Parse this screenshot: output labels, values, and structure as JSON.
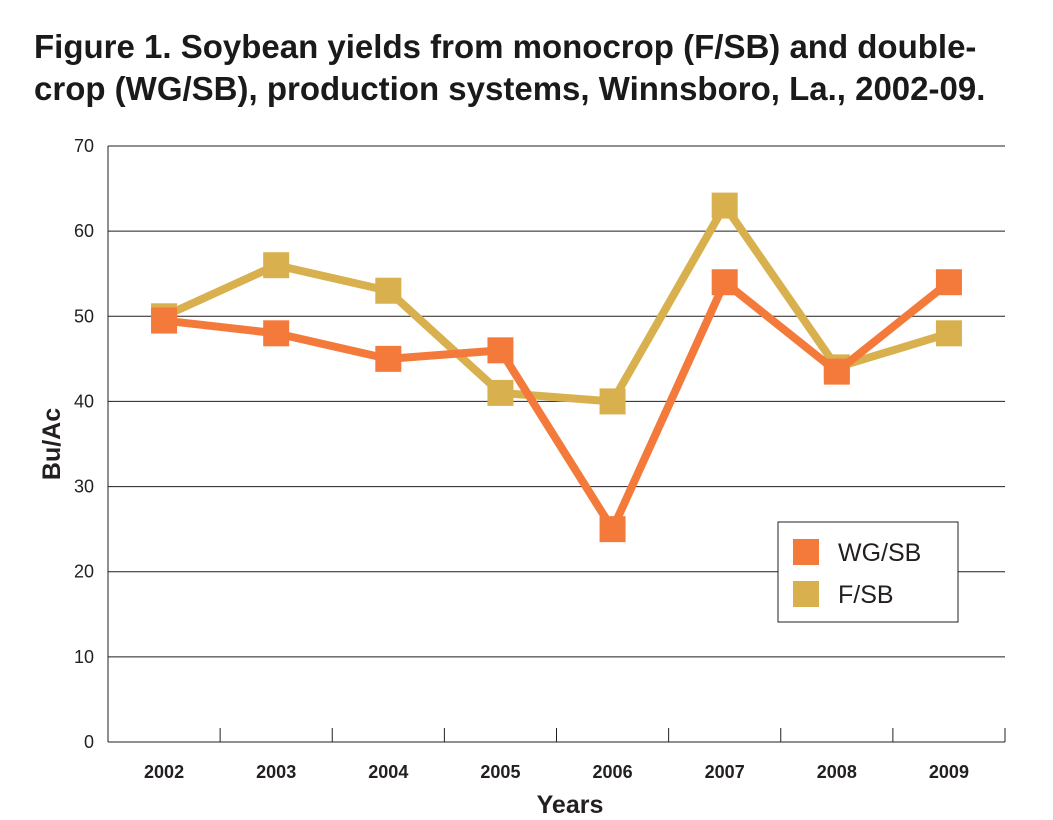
{
  "chart_data": {
    "type": "line",
    "title": "Figure 1. Soybean yields from monocrop (F/SB) and double-crop (WG/SB), production systems, Winnsboro, La., 2002-09.",
    "title_lines": [
      "Figure 1. Soybean yields from monocrop (F/SB) and double-",
      "crop (WG/SB), production systems, Winnsboro, La., 2002-09."
    ],
    "xlabel": "Years",
    "ylabel": "Bu/Ac",
    "categories": [
      "2002",
      "2003",
      "2004",
      "2005",
      "2006",
      "2007",
      "2008",
      "2009"
    ],
    "ylim": [
      0,
      70
    ],
    "yticks": [
      0,
      10,
      20,
      30,
      40,
      50,
      60,
      70
    ],
    "grid": true,
    "legend_position": "lower-right",
    "series": [
      {
        "name": "WG/SB",
        "color": "#f47a3b",
        "values": [
          49.5,
          48,
          45,
          46,
          25,
          54,
          43.5,
          54
        ]
      },
      {
        "name": "F/SB",
        "color": "#d8b04e",
        "values": [
          50,
          56,
          53,
          41,
          40,
          63,
          44,
          48
        ]
      }
    ]
  }
}
